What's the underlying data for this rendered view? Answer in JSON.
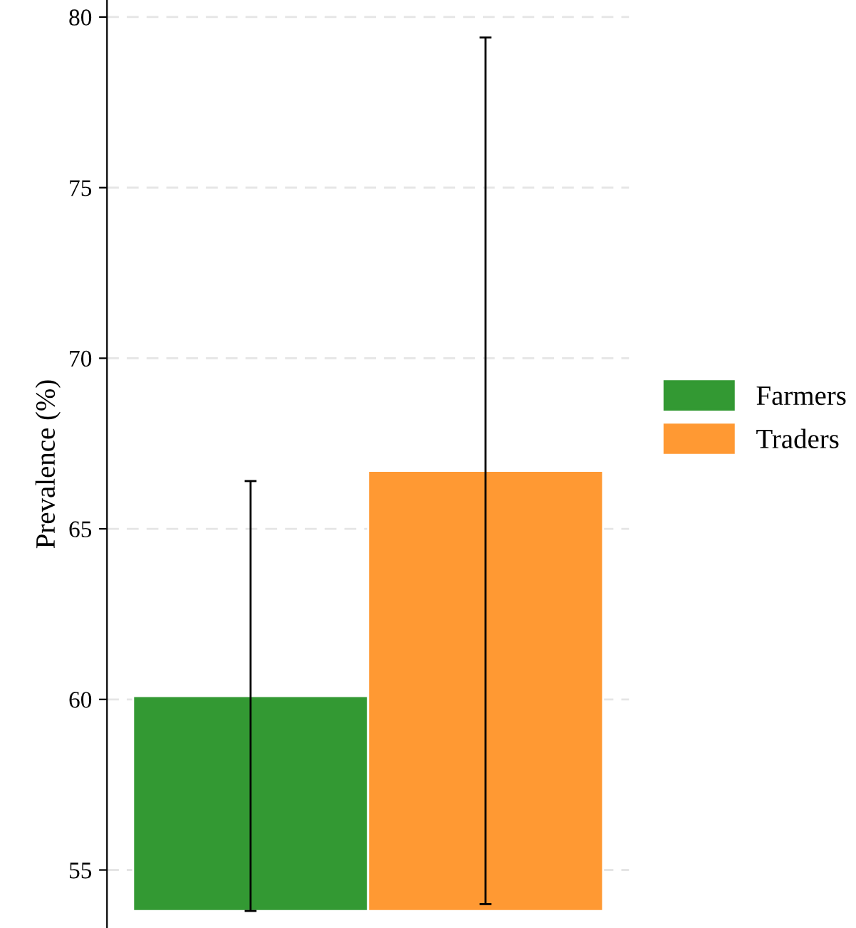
{
  "chart_data": {
    "type": "bar",
    "ylabel": "Prevalence (%)",
    "categories": [
      null
    ],
    "series": [
      {
        "name": "Farmers",
        "color": "#339933",
        "values": [
          6.3
        ],
        "base": [
          53.8
        ],
        "errors": [
          [
            53.8,
            66.4
          ]
        ]
      },
      {
        "name": "Traders",
        "color": "#ff9933",
        "values": [
          12.9
        ],
        "base": [
          53.8
        ],
        "errors": [
          [
            54.0,
            79.4
          ]
        ]
      }
    ],
    "ylim": [
      53.3,
      80.5
    ],
    "yticks": [
      55,
      60,
      65,
      70,
      75,
      80
    ],
    "grid": "y",
    "legend": "right"
  }
}
